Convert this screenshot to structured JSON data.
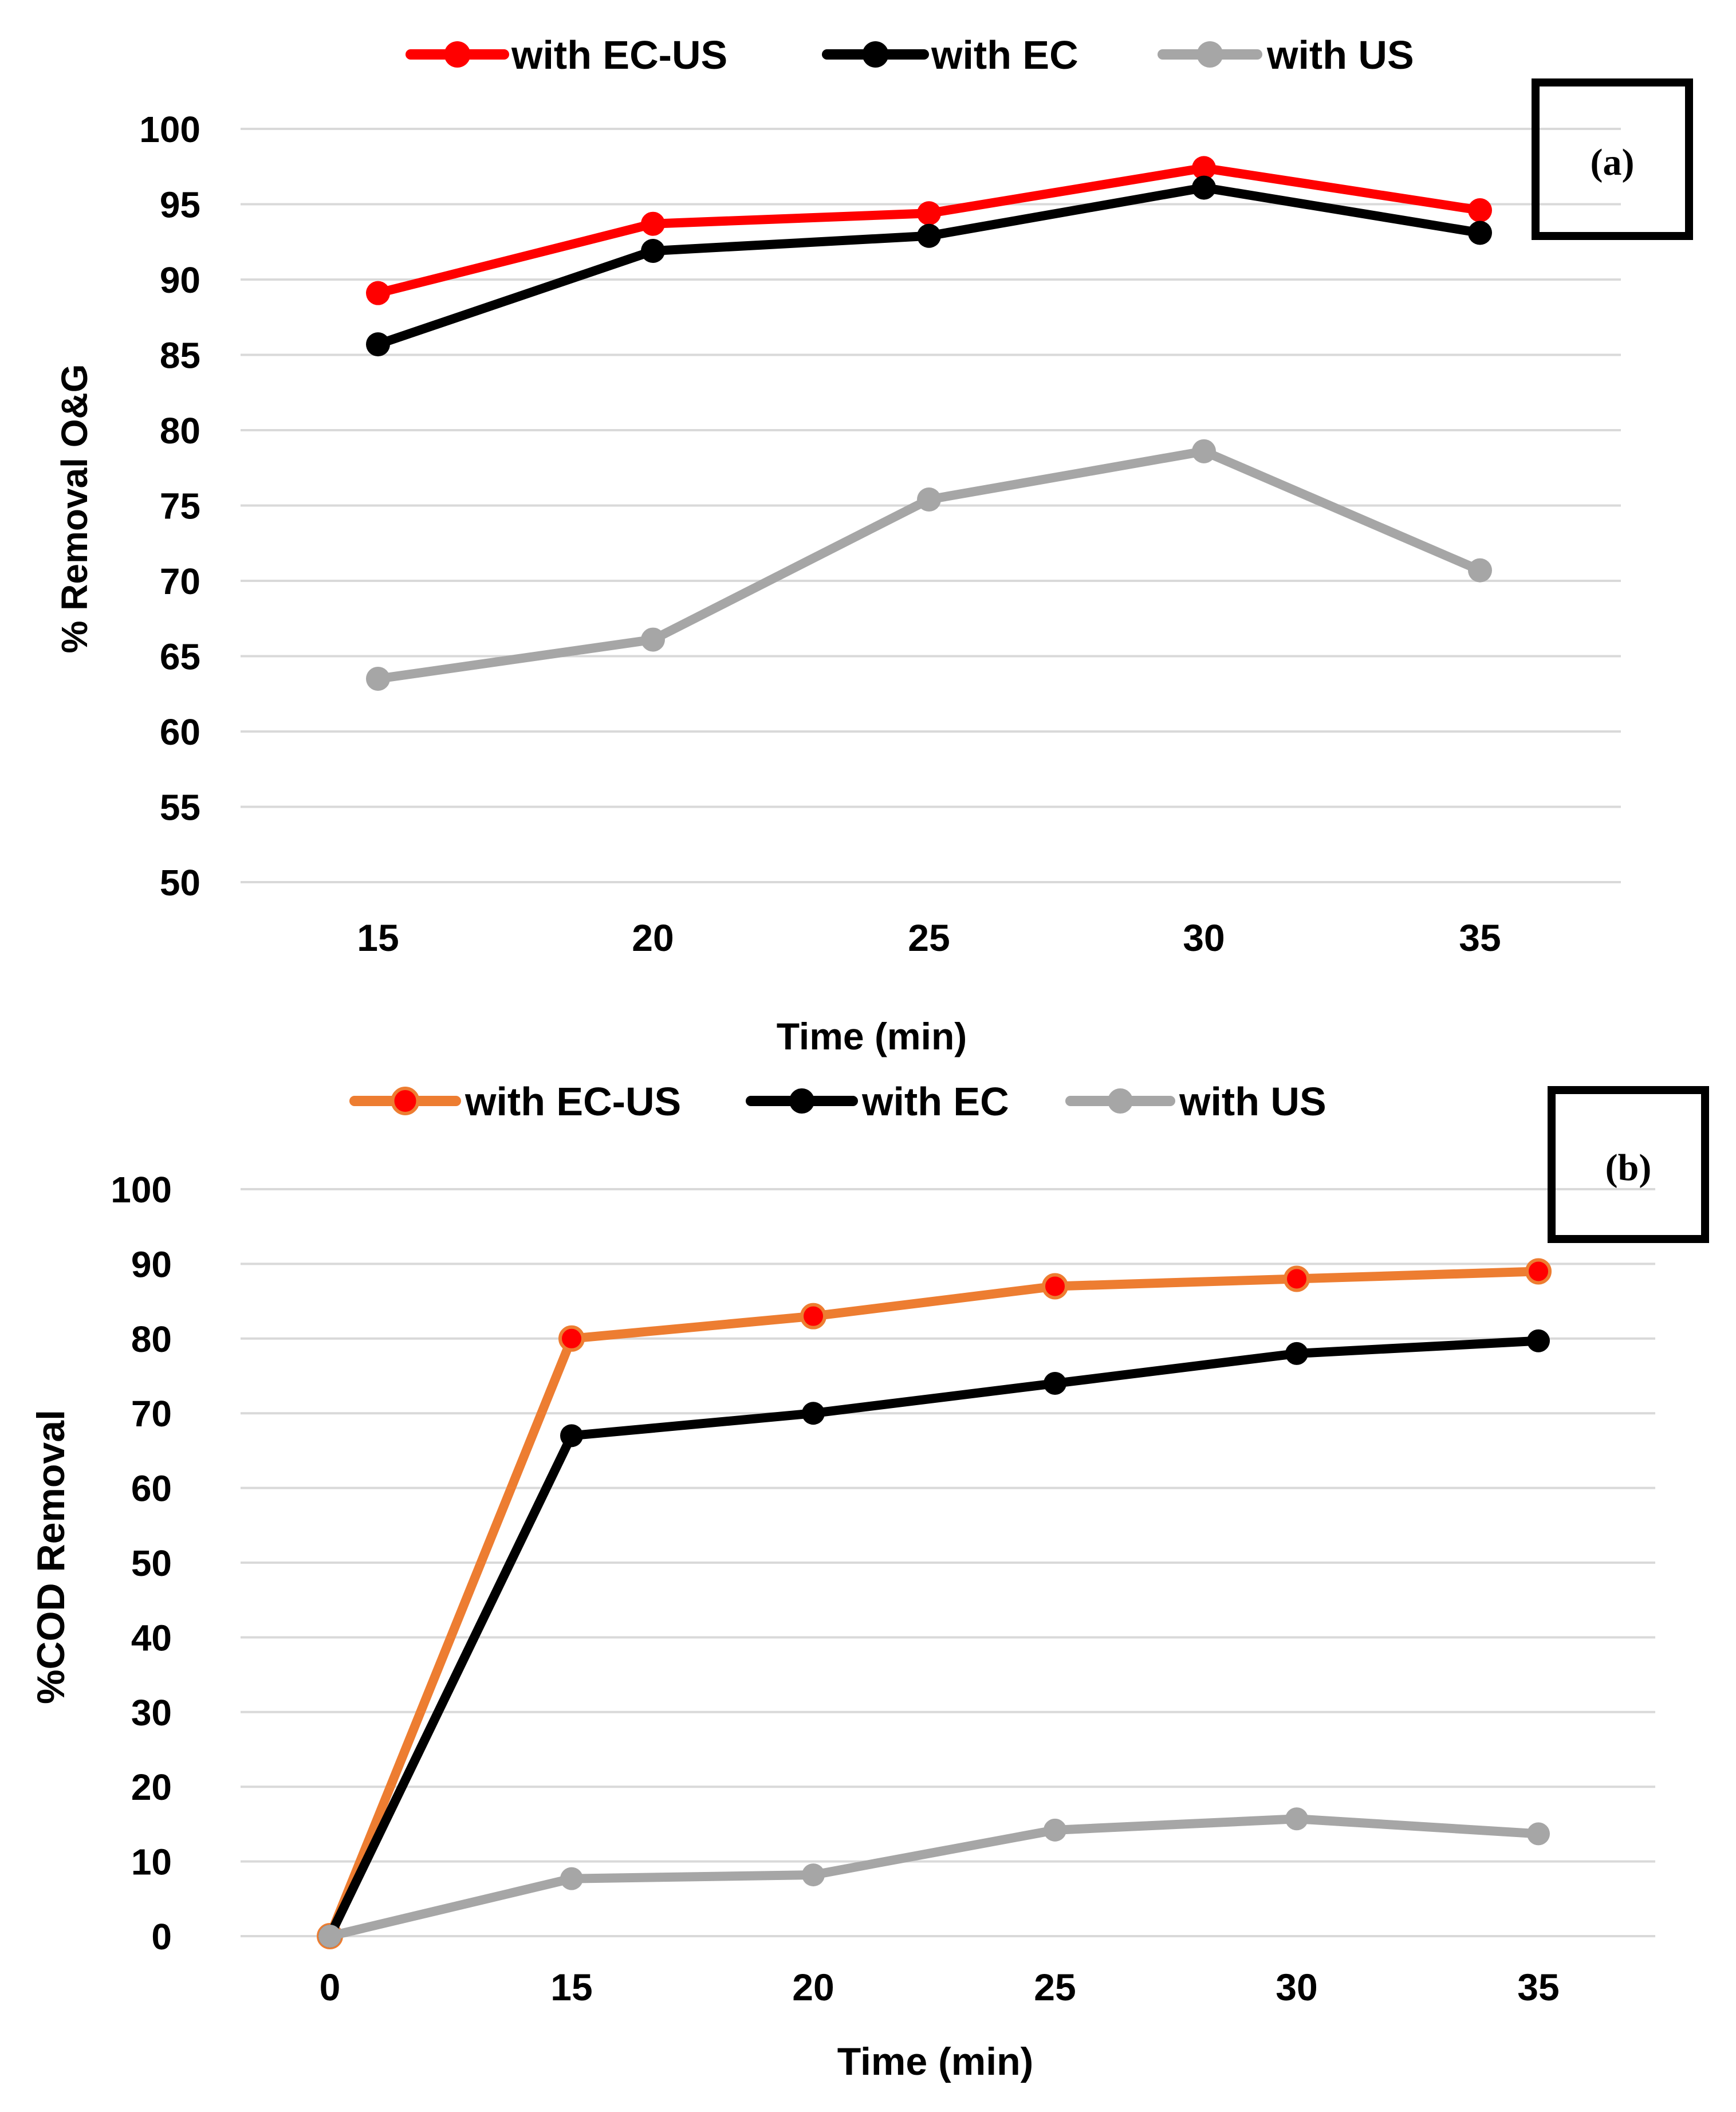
{
  "chart_data": [
    {
      "panel": "(a)",
      "type": "line",
      "title": "",
      "xlabel": "Time (min)",
      "ylabel": "% Removal O&G",
      "categories": [
        "15",
        "20",
        "25",
        "30",
        "35"
      ],
      "ylim": [
        50,
        100
      ],
      "yticks": [
        50,
        55,
        60,
        65,
        70,
        75,
        80,
        85,
        90,
        95,
        100
      ],
      "grid": true,
      "legend_position": "top",
      "series": [
        {
          "name": "with EC-US",
          "color": "#ff0000",
          "values": [
            89.1,
            93.7,
            94.4,
            97.4,
            94.6
          ]
        },
        {
          "name": "with EC",
          "color": "#000000",
          "values": [
            85.7,
            91.9,
            92.9,
            96.1,
            93.1
          ]
        },
        {
          "name": "with US",
          "color": "#a6a6a6",
          "values": [
            63.5,
            66.1,
            75.4,
            78.6,
            70.7
          ]
        }
      ]
    },
    {
      "panel": "(b)",
      "type": "line",
      "title": "",
      "xlabel": "Time (min)",
      "ylabel": "%COD Removal",
      "categories": [
        "0",
        "15",
        "20",
        "25",
        "30",
        "35"
      ],
      "ylim": [
        0,
        100
      ],
      "yticks": [
        0,
        10,
        20,
        30,
        40,
        50,
        60,
        70,
        80,
        90,
        100
      ],
      "grid": true,
      "legend_position": "top",
      "series": [
        {
          "name": "with EC-US",
          "color": "#ed7d31",
          "marker_color": "#ff0000",
          "values": [
            0,
            80,
            83,
            87,
            88,
            89
          ]
        },
        {
          "name": "with EC",
          "color": "#000000",
          "values": [
            0,
            67,
            70,
            74,
            78,
            79.7
          ]
        },
        {
          "name": "with US",
          "color": "#a6a6a6",
          "values": [
            0,
            7.7,
            8.2,
            14.2,
            15.7,
            13.7
          ]
        }
      ]
    }
  ]
}
